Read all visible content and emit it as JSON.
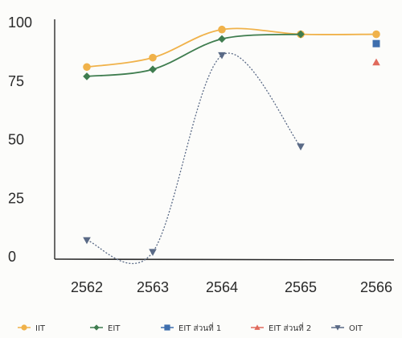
{
  "chart_data": {
    "type": "line",
    "categories": [
      "2562",
      "2563",
      "2564",
      "2565",
      "2566"
    ],
    "ylim": [
      0,
      100
    ],
    "yticks": [
      0,
      25,
      50,
      75,
      100
    ],
    "grid": false,
    "legend_position": "bottom",
    "series": [
      {
        "name": "IIT",
        "color": "#f0b24a",
        "marker": "circle",
        "values": [
          81,
          85,
          97,
          95,
          95
        ]
      },
      {
        "name": "EIT",
        "color": "#3f7d4f",
        "marker": "diamond",
        "values": [
          77,
          80,
          93,
          95,
          null
        ]
      },
      {
        "name": "EIT ส่วนที่ 1",
        "color": "#3f6fae",
        "marker": "square",
        "values": [
          null,
          null,
          null,
          null,
          91
        ]
      },
      {
        "name": "EIT ส่วนที่ 2",
        "color": "#e06a5c",
        "marker": "triangle",
        "values": [
          null,
          null,
          null,
          null,
          83
        ]
      },
      {
        "name": "OIT",
        "color": "#5a6a86",
        "marker": "triangle-down",
        "values": [
          7,
          2,
          86,
          47,
          null
        ]
      }
    ]
  }
}
